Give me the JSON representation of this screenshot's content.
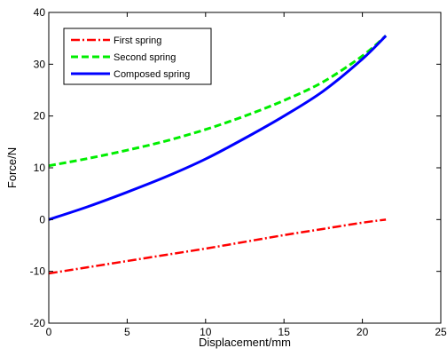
{
  "chart_data": {
    "type": "line",
    "xlabel": "Displacement/mm",
    "ylabel": "Force/N",
    "xlim": [
      0,
      25
    ],
    "ylim": [
      -20,
      40
    ],
    "xticks": [
      0,
      5,
      10,
      15,
      20,
      25
    ],
    "yticks": [
      -20,
      -10,
      0,
      10,
      20,
      30,
      40
    ],
    "grid": false,
    "legend_position": "top-left",
    "series": [
      {
        "name": "First spring",
        "color": "#ff0000",
        "dash": "dash-dot",
        "x": [
          0,
          2.5,
          5,
          7.5,
          10,
          12.5,
          15,
          17.5,
          20,
          21.5
        ],
        "y": [
          -10.4,
          -9.2,
          -8.0,
          -6.8,
          -5.6,
          -4.3,
          -3.0,
          -1.8,
          -0.6,
          0.0
        ]
      },
      {
        "name": "Second spring",
        "color": "#00ee00",
        "dash": "dashed",
        "x": [
          0,
          2.5,
          5,
          7.5,
          10,
          12.5,
          15,
          17.5,
          20,
          21.5
        ],
        "y": [
          10.4,
          11.8,
          13.4,
          15.2,
          17.4,
          20.0,
          23.0,
          26.6,
          31.6,
          35.5
        ]
      },
      {
        "name": "Composed spring",
        "color": "#0000ff",
        "dash": "solid",
        "x": [
          0,
          2.5,
          5,
          7.5,
          10,
          12.5,
          15,
          17.5,
          20,
          21.5
        ],
        "y": [
          0.0,
          2.5,
          5.3,
          8.3,
          11.7,
          15.7,
          20.0,
          24.8,
          31.0,
          35.5
        ]
      }
    ]
  }
}
